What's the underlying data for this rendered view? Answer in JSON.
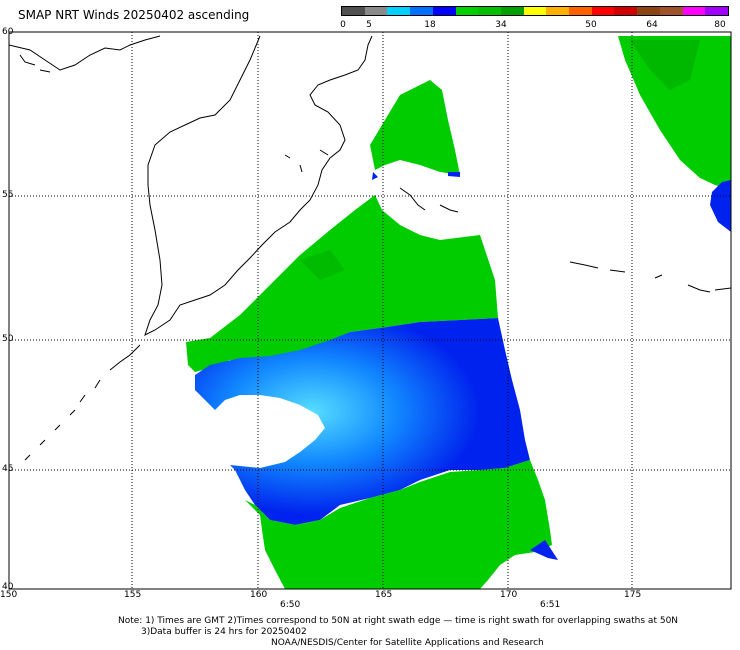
{
  "title": "SMAP NRT Winds 20250402 ascending",
  "colorbar": {
    "labels": [
      "0",
      "5",
      "18",
      "34",
      "50",
      "64",
      "80"
    ],
    "colors": [
      "#505050",
      "#8a8a8a",
      "#00d0ff",
      "#0070ff",
      "#0000ff",
      "#00d000",
      "#00c000",
      "#00a000",
      "#ffff00",
      "#ffb000",
      "#ff6000",
      "#ff0000",
      "#d00000",
      "#8b4513",
      "#a0522d",
      "#ff00ff",
      "#a000ff"
    ]
  },
  "lat_labels": [
    "60",
    "55",
    "50",
    "45",
    "40"
  ],
  "lon_labels": [
    "150",
    "155",
    "160",
    "165",
    "170",
    "175"
  ],
  "times": [
    "6:50",
    "6:51"
  ],
  "notes": {
    "line1": "Note: 1) Times are GMT 2)Times correspond to 50N at right swath edge — time is right swath for overlapping swaths at 50N",
    "line2": "3)Data buffer is 24 hrs for 20250402",
    "line3": "NOAA/NESDIS/Center for Satellite Applications and Research"
  },
  "colors": {
    "green": "#00cc00",
    "blue": "#0022ee",
    "cyan": "#33ccff",
    "grid": "#000000",
    "coast": "#000000"
  }
}
